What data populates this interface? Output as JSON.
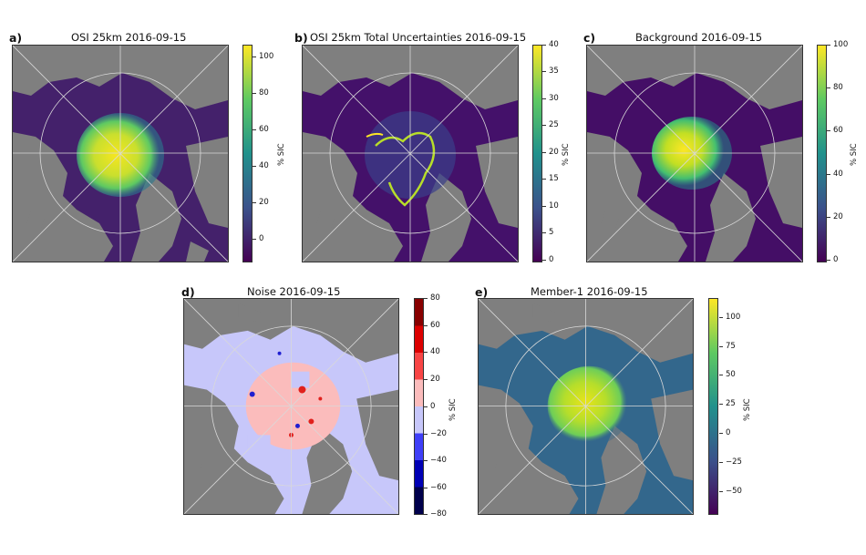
{
  "panels": [
    {
      "id": "a",
      "label": "a)",
      "title": "OSI 25km 2016-09-15",
      "cbar_label": "% SIC",
      "ticks": [
        "100",
        "80",
        "60",
        "40",
        "20",
        "0"
      ],
      "tick_values": [
        100,
        80,
        60,
        40,
        20,
        0
      ],
      "range": [
        -12,
        107
      ],
      "colormap": "viridis",
      "ocean_color": "#44216b"
    },
    {
      "id": "b",
      "label": "b)",
      "title": "OSI 25km Total Uncertainties 2016-09-15",
      "cbar_label": "% SIC",
      "ticks": [
        "40",
        "35",
        "30",
        "25",
        "20",
        "15",
        "10",
        "5",
        "0"
      ],
      "tick_values": [
        40,
        35,
        30,
        25,
        20,
        15,
        10,
        5,
        0
      ],
      "range": [
        0,
        40
      ],
      "colormap": "viridis",
      "ocean_color": "#44116a"
    },
    {
      "id": "c",
      "label": "c)",
      "title": "Background 2016-09-15",
      "cbar_label": "% SIC",
      "ticks": [
        "100",
        "80",
        "60",
        "40",
        "20",
        "0"
      ],
      "tick_values": [
        100,
        80,
        60,
        40,
        20,
        0
      ],
      "range": [
        0,
        100
      ],
      "colormap": "viridis",
      "ocean_color": "#440e66"
    },
    {
      "id": "d",
      "label": "d)",
      "title": "Noise 2016-09-15",
      "cbar_label": "% SIC",
      "ticks": [
        "80",
        "60",
        "40",
        "20",
        "0",
        "−20",
        "−40",
        "−60",
        "−80"
      ],
      "tick_values": [
        80,
        60,
        40,
        20,
        0,
        -20,
        -40,
        -60,
        -80
      ],
      "range": [
        -80,
        80
      ],
      "colormap": "seismic-discrete",
      "ocean_color": "#c7c7fa"
    },
    {
      "id": "e",
      "label": "e)",
      "title": "Member-1 2016-09-15",
      "cbar_label": "% SIC",
      "ticks": [
        "100",
        "75",
        "50",
        "25",
        "0",
        "−25",
        "−50"
      ],
      "tick_values": [
        100,
        75,
        50,
        25,
        0,
        -25,
        -50
      ],
      "range": [
        -70,
        115
      ],
      "colormap": "viridis",
      "ocean_color": "#33678c"
    }
  ],
  "colors": {
    "land": "#7f7f7f",
    "grid": "#d9d9d9",
    "frame": "#333333"
  }
}
